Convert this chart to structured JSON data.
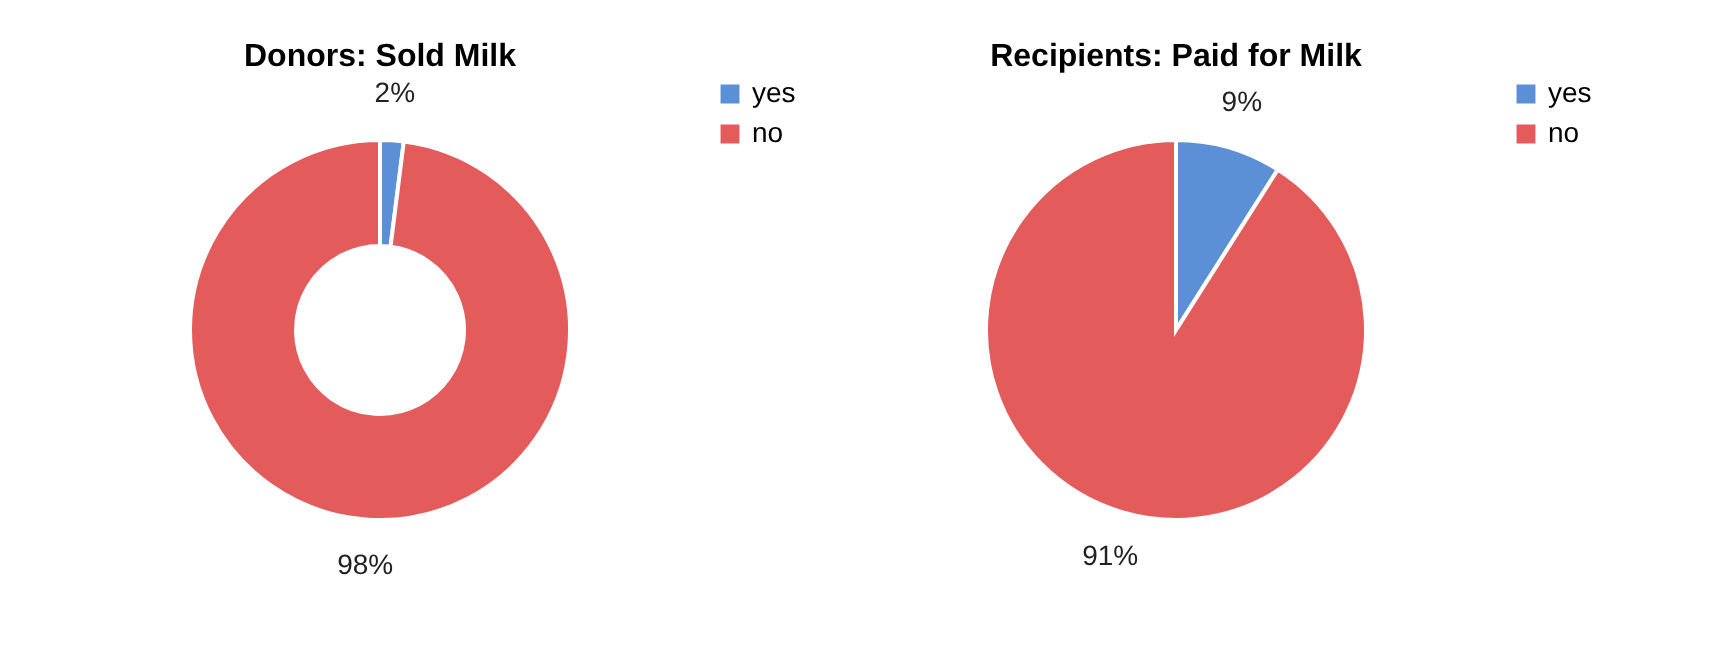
{
  "chart_data": [
    {
      "type": "donut",
      "title": "Donors: Sold Milk",
      "categories": [
        "yes",
        "no"
      ],
      "values": [
        2,
        98
      ],
      "colors": [
        "#5b8fd6",
        "#e35b5b"
      ],
      "value_labels": [
        "2%",
        "98%"
      ],
      "legend": "right"
    },
    {
      "type": "pie",
      "title": "Recipients: Paid for Milk",
      "categories": [
        "yes",
        "no"
      ],
      "values": [
        9,
        91
      ],
      "colors": [
        "#5b8fd6",
        "#e35b5b"
      ],
      "value_labels": [
        "9%",
        "91%"
      ],
      "legend": "right"
    }
  ]
}
